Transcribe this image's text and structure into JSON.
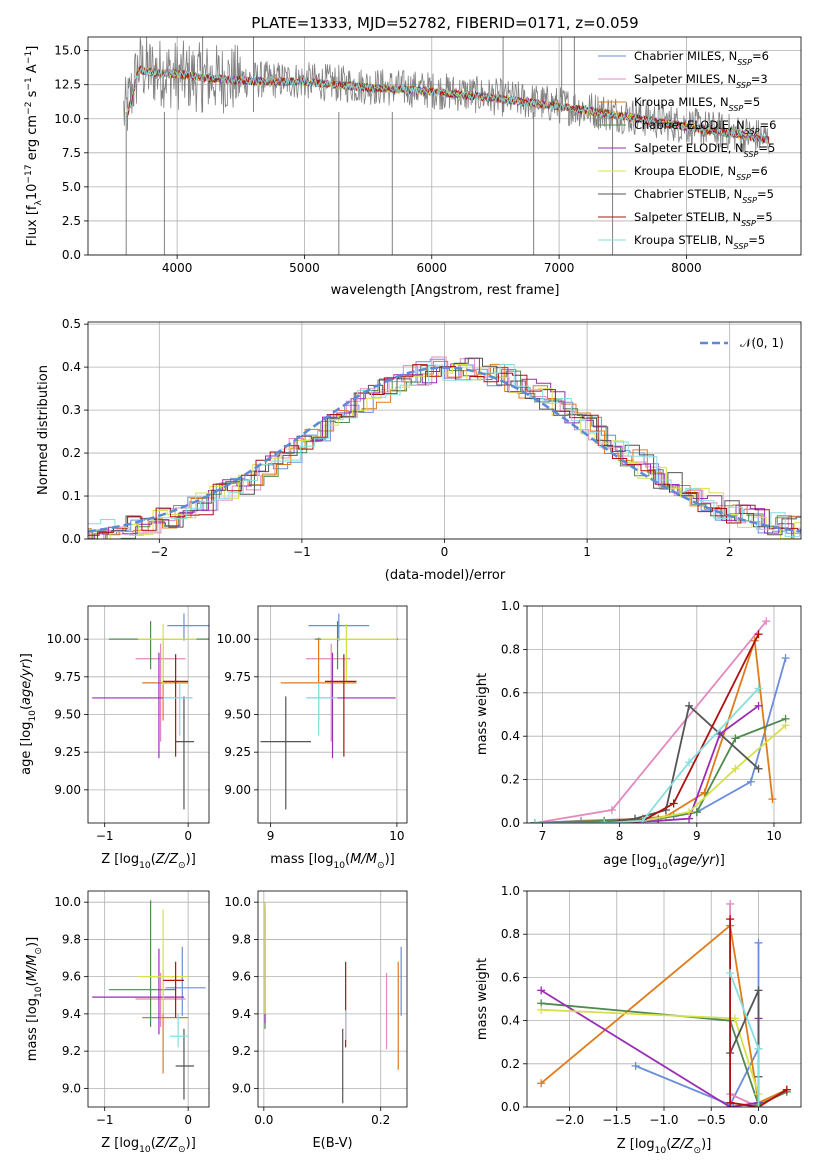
{
  "colors": [
    "#6b8ddb",
    "#e388c0",
    "#e07b1a",
    "#4f8a4f",
    "#9a2db5",
    "#d6e04a",
    "#555555",
    "#b01010",
    "#86dede"
  ],
  "chart_data": [
    {
      "id": "spectrum",
      "type": "line",
      "title": "PLATE=1333, MJD=52782, FIBERID=0171, z=0.059",
      "xlabel": "wavelength [Angstrom, rest frame]",
      "ylabel": "Flux [f_λ 10^-17 erg cm^-2 s^-1 A^-1]",
      "xlim": [
        3300,
        8900
      ],
      "ylim": [
        0,
        16
      ],
      "xticks": [
        4000,
        5000,
        6000,
        7000,
        8000
      ],
      "yticks": [
        0.0,
        2.5,
        5.0,
        7.5,
        10.0,
        12.5,
        15.0
      ],
      "ytick_labels": [
        "0.0",
        "2.5",
        "5.0",
        "7.5",
        "10.0",
        "12.5",
        "15.0"
      ],
      "legend_position": "top-right",
      "legend": [
        {
          "name": "Chabrier MILES",
          "n_ssp": "6"
        },
        {
          "name": "Salpeter MILES",
          "n_ssp": "3"
        },
        {
          "name": "Kroupa MILES",
          "n_ssp": "5"
        },
        {
          "name": "Chabrier ELODIE",
          "n_ssp": "6"
        },
        {
          "name": "Salpeter ELODIE",
          "n_ssp": "5"
        },
        {
          "name": "Kroupa ELODIE",
          "n_ssp": "6"
        },
        {
          "name": "Chabrier STELIB",
          "n_ssp": "5"
        },
        {
          "name": "Salpeter STELIB",
          "n_ssp": "5"
        },
        {
          "name": "Kroupa STELIB",
          "n_ssp": "5"
        }
      ],
      "data_color": "#808080",
      "data_trend": {
        "x": [
          3600,
          3700,
          3800,
          4000,
          4200,
          4500,
          5000,
          5500,
          6000,
          6500,
          7000,
          7500,
          8000,
          8500,
          8650
        ],
        "y": [
          10.5,
          13.8,
          13.5,
          13.2,
          13.0,
          12.9,
          12.8,
          12.4,
          12.1,
          11.6,
          11.0,
          10.3,
          9.5,
          8.8,
          8.5
        ]
      },
      "model_trend": {
        "x": [
          3600,
          3700,
          3800,
          4000,
          4200,
          4500,
          5000,
          5500,
          6000,
          6500,
          7000,
          7500,
          8000,
          8500,
          8650
        ],
        "y": [
          10.0,
          13.6,
          13.4,
          13.3,
          13.0,
          12.8,
          12.7,
          12.3,
          12.0,
          11.5,
          10.9,
          10.2,
          9.4,
          8.7,
          8.4
        ]
      }
    },
    {
      "id": "residuals",
      "type": "line",
      "xlabel": "(data-model)/error",
      "ylabel": "Normed distribution",
      "xlim": [
        -2.5,
        2.5
      ],
      "ylim": [
        0,
        0.505
      ],
      "xticks": [
        -2,
        -1,
        0,
        1,
        2
      ],
      "xtick_labels": [
        "−2",
        "−1",
        "0",
        "1",
        "2"
      ],
      "yticks": [
        0.0,
        0.1,
        0.2,
        0.3,
        0.4,
        0.5
      ],
      "ytick_labels": [
        "0.0",
        "0.1",
        "0.2",
        "0.3",
        "0.4",
        "0.5"
      ],
      "legend_label": "𝒩(0, 1)",
      "legend_position": "top-right",
      "normal_color": "#5b8ad6"
    },
    {
      "id": "age-vs-Z",
      "type": "errorbar",
      "xlabel": "Z [log10(Z/Z⊙)]",
      "ylabel": "age [log10(age/yr)]",
      "xlim": [
        -1.2,
        0.25
      ],
      "ylim": [
        8.78,
        10.22
      ],
      "xticks": [
        -1,
        0
      ],
      "xtick_labels": [
        "−1",
        "0"
      ],
      "yticks": [
        9.0,
        9.25,
        9.5,
        9.75,
        10.0
      ],
      "ytick_labels": [
        "9.00",
        "9.25",
        "9.50",
        "9.75",
        "10.00"
      ],
      "points": [
        {
          "x": -0.05,
          "xerr": [
            0.2,
            0.3
          ],
          "y": 10.09,
          "yerr": [
            0.1,
            0.08
          ]
        },
        {
          "x": -0.33,
          "xerr": [
            0.3,
            0.3
          ],
          "y": 9.87,
          "yerr": [
            0.55,
            0.1
          ]
        },
        {
          "x": -0.3,
          "xerr": [
            0.25,
            0.3
          ],
          "y": 9.71,
          "yerr": [
            0.25,
            0.3
          ]
        },
        {
          "x": -0.45,
          "xerr": [
            0.5,
            0.7
          ],
          "y": 10.0,
          "yerr": [
            0.2,
            0.12
          ]
        },
        {
          "x": -0.35,
          "xerr": [
            0.8,
            0.4
          ],
          "y": 9.61,
          "yerr": [
            0.4,
            0.3
          ]
        },
        {
          "x": -0.3,
          "xerr": [
            0.3,
            0.4
          ],
          "y": 10.0,
          "yerr": [
            0.3,
            0.1
          ]
        },
        {
          "x": -0.05,
          "xerr": [
            0.1,
            0.12
          ],
          "y": 9.32,
          "yerr": [
            0.45,
            0.3
          ]
        },
        {
          "x": -0.15,
          "xerr": [
            0.15,
            0.15
          ],
          "y": 9.72,
          "yerr": [
            0.5,
            0.18
          ]
        },
        {
          "x": -0.1,
          "xerr": [
            0.2,
            0.15
          ],
          "y": 9.61,
          "yerr": [
            0.25,
            0.1
          ]
        }
      ]
    },
    {
      "id": "age-vs-mass",
      "type": "errorbar",
      "xlabel": "mass [log10(M/M⊙)]",
      "xlim": [
        8.9,
        10.08
      ],
      "ylim": [
        8.78,
        10.22
      ],
      "xticks": [
        9,
        10
      ],
      "xtick_labels": [
        "9",
        "10"
      ],
      "yticks": [
        9.0,
        9.25,
        9.5,
        9.75,
        10.0
      ],
      "ytick_labels": [
        "9.00",
        "9.25",
        "9.50",
        "9.75",
        "10.00"
      ],
      "points": [
        {
          "x": 9.54,
          "xerr": [
            0.24,
            0.24
          ],
          "y": 10.09,
          "yerr": [
            0.1,
            0.08
          ]
        },
        {
          "x": 9.48,
          "xerr": [
            0.2,
            0.15
          ],
          "y": 9.87,
          "yerr": [
            0.55,
            0.1
          ]
        },
        {
          "x": 9.38,
          "xerr": [
            0.3,
            0.3
          ],
          "y": 9.71,
          "yerr": [
            0.25,
            0.3
          ]
        },
        {
          "x": 9.53,
          "xerr": [
            0.18,
            0.48
          ],
          "y": 10.0,
          "yerr": [
            0.2,
            0.12
          ]
        },
        {
          "x": 9.49,
          "xerr": [
            0.2,
            0.5
          ],
          "y": 9.61,
          "yerr": [
            0.4,
            0.3
          ]
        },
        {
          "x": 9.6,
          "xerr": [
            0.2,
            0.4
          ],
          "y": 10.0,
          "yerr": [
            0.3,
            0.1
          ]
        },
        {
          "x": 9.12,
          "xerr": [
            0.2,
            0.2
          ],
          "y": 9.32,
          "yerr": [
            0.45,
            0.3
          ]
        },
        {
          "x": 9.58,
          "xerr": [
            0.15,
            0.1
          ],
          "y": 9.72,
          "yerr": [
            0.5,
            0.18
          ]
        },
        {
          "x": 9.38,
          "xerr": [
            0.1,
            0.15
          ],
          "y": 9.61,
          "yerr": [
            0.25,
            0.1
          ]
        }
      ]
    },
    {
      "id": "massweight-vs-age",
      "type": "line",
      "xlabel": "age [log10(age/yr)]",
      "ylabel": "mass weight",
      "xlim": [
        6.8,
        10.35
      ],
      "ylim": [
        0,
        1.0
      ],
      "xticks": [
        7,
        8,
        9,
        10
      ],
      "xtick_labels": [
        "7",
        "8",
        "9",
        "10"
      ],
      "yticks": [
        0.0,
        0.2,
        0.4,
        0.6,
        0.8,
        1.0
      ],
      "ytick_labels": [
        "0.0",
        "0.2",
        "0.4",
        "0.6",
        "0.8",
        "1.0"
      ],
      "series": [
        {
          "x": [
            6.9,
            7.5,
            8.3,
            8.7,
            9.0,
            9.7,
            10.15
          ],
          "y": [
            0.0,
            0.01,
            0.02,
            0.03,
            0.05,
            0.19,
            0.76
          ]
        },
        {
          "x": [
            6.9,
            7.9,
            9.9
          ],
          "y": [
            0.0,
            0.06,
            0.93
          ]
        },
        {
          "x": [
            6.9,
            8.3,
            8.6,
            9.1,
            9.75,
            9.98
          ],
          "y": [
            0.0,
            0.02,
            0.03,
            0.14,
            0.84,
            0.11
          ]
        },
        {
          "x": [
            6.9,
            7.8,
            8.5,
            9.0,
            9.5,
            10.15
          ],
          "y": [
            0.0,
            0.01,
            0.02,
            0.05,
            0.39,
            0.48
          ]
        },
        {
          "x": [
            6.9,
            7.8,
            8.5,
            8.9,
            9.3,
            9.8
          ],
          "y": [
            0.0,
            0.0,
            0.01,
            0.02,
            0.41,
            0.54
          ]
        },
        {
          "x": [
            6.9,
            7.8,
            8.3,
            8.9,
            9.5,
            10.15
          ],
          "y": [
            0.0,
            0.0,
            0.01,
            0.05,
            0.25,
            0.45
          ]
        },
        {
          "x": [
            6.9,
            7.8,
            8.2,
            8.6,
            8.9,
            9.8
          ],
          "y": [
            0.0,
            0.0,
            0.02,
            0.06,
            0.54,
            0.25
          ]
        },
        {
          "x": [
            6.9,
            8.0,
            8.3,
            8.7,
            9.8
          ],
          "y": [
            0.0,
            0.0,
            0.01,
            0.09,
            0.87
          ]
        },
        {
          "x": [
            6.9,
            7.8,
            8.3,
            8.9,
            9.8
          ],
          "y": [
            0.0,
            0.0,
            0.01,
            0.28,
            0.62
          ]
        }
      ]
    },
    {
      "id": "mass-vs-Z",
      "type": "errorbar",
      "xlabel": "Z [log10(Z/Z⊙)]",
      "ylabel": "mass [log10(M/M⊙)]",
      "xlim": [
        -1.2,
        0.25
      ],
      "ylim": [
        8.9,
        10.06
      ],
      "xticks": [
        -1,
        0
      ],
      "xtick_labels": [
        "−1",
        "0"
      ],
      "yticks": [
        9.0,
        9.2,
        9.4,
        9.6,
        9.8,
        10.0
      ],
      "ytick_labels": [
        "9.0",
        "9.2",
        "9.4",
        "9.6",
        "9.8",
        "10.0"
      ],
      "points": [
        {
          "x": -0.07,
          "xerr": [
            0.2,
            0.28
          ],
          "y": 9.54,
          "yerr": [
            0.15,
            0.22
          ]
        },
        {
          "x": -0.33,
          "xerr": [
            0.3,
            0.3
          ],
          "y": 9.48,
          "yerr": [
            0.15,
            0.14
          ]
        },
        {
          "x": -0.3,
          "xerr": [
            0.25,
            0.3
          ],
          "y": 9.38,
          "yerr": [
            0.3,
            0.26
          ]
        },
        {
          "x": -0.45,
          "xerr": [
            0.5,
            0.3
          ],
          "y": 9.53,
          "yerr": [
            0.2,
            0.48
          ]
        },
        {
          "x": -0.35,
          "xerr": [
            0.8,
            0.3
          ],
          "y": 9.49,
          "yerr": [
            0.2,
            0.26
          ]
        },
        {
          "x": -0.3,
          "xerr": [
            0.3,
            0.3
          ],
          "y": 9.6,
          "yerr": [
            0.2,
            0.36
          ]
        },
        {
          "x": -0.05,
          "xerr": [
            0.1,
            0.12
          ],
          "y": 9.12,
          "yerr": [
            0.18,
            0.2
          ]
        },
        {
          "x": -0.15,
          "xerr": [
            0.15,
            0.1
          ],
          "y": 9.58,
          "yerr": [
            0.2,
            0.1
          ]
        },
        {
          "x": -0.12,
          "xerr": [
            0.1,
            0.12
          ],
          "y": 9.28,
          "yerr": [
            0.06,
            0.12
          ]
        }
      ]
    },
    {
      "id": "mass-vs-EBV",
      "type": "errorbar",
      "xlabel": "E(B-V)",
      "xlim": [
        -0.01,
        0.245
      ],
      "ylim": [
        8.9,
        10.06
      ],
      "xticks": [
        0.0,
        0.2
      ],
      "xtick_labels": [
        "0.0",
        "0.2"
      ],
      "yticks": [
        9.0,
        9.2,
        9.4,
        9.6,
        9.8,
        10.0
      ],
      "ytick_labels": [
        "9.0",
        "9.2",
        "9.4",
        "9.6",
        "9.8",
        "10.0"
      ],
      "points": [
        {
          "x": 0.235,
          "y": 9.54,
          "yerr": [
            0.15,
            0.22
          ]
        },
        {
          "x": 0.21,
          "y": 9.46,
          "yerr": [
            0.25,
            0.16
          ]
        },
        {
          "x": 0.23,
          "y": 9.4,
          "yerr": [
            0.3,
            0.28
          ]
        },
        {
          "x": 0.002,
          "y": 9.62,
          "yerr": [
            0.3,
            0.35
          ]
        },
        {
          "x": 0.002,
          "y": 9.65,
          "yerr": [
            0.3,
            0.35
          ]
        },
        {
          "x": 0.002,
          "y": 9.7,
          "yerr": [
            0.3,
            0.3
          ]
        },
        {
          "x": 0.135,
          "y": 9.12,
          "yerr": [
            0.2,
            0.2
          ]
        },
        {
          "x": 0.14,
          "y": 9.42,
          "yerr": [
            0.2,
            0.26
          ]
        },
        {
          "x": 0.14,
          "y": 9.32,
          "yerr": [
            0.06,
            0.1
          ]
        }
      ]
    },
    {
      "id": "massweight-vs-Z",
      "type": "line",
      "xlabel": "Z [log10(Z/Z⊙)]",
      "ylabel": "mass weight",
      "xlim": [
        -2.45,
        0.45
      ],
      "ylim": [
        0,
        1.0
      ],
      "xticks": [
        -2.0,
        -1.5,
        -1.0,
        -0.5,
        0.0
      ],
      "xtick_labels": [
        "−2.0",
        "−1.5",
        "−1.0",
        "−0.5",
        "0.0"
      ],
      "yticks": [
        0.0,
        0.2,
        0.4,
        0.6,
        0.8,
        1.0
      ],
      "ytick_labels": [
        "0.0",
        "0.2",
        "0.4",
        "0.6",
        "0.8",
        "1.0"
      ],
      "series": [
        {
          "x": [
            -1.3,
            -0.3,
            0.0,
            0.0
          ],
          "y": [
            0.19,
            0.01,
            0.27,
            0.76
          ]
        },
        {
          "x": [
            -0.3,
            -0.3,
            0.0
          ],
          "y": [
            0.94,
            0.06,
            0.0
          ]
        },
        {
          "x": [
            -2.3,
            -0.3,
            0.0,
            0.3
          ],
          "y": [
            0.11,
            0.84,
            0.02,
            0.08
          ]
        },
        {
          "x": [
            -2.3,
            -0.3,
            0.0,
            0.3
          ],
          "y": [
            0.48,
            0.4,
            0.01,
            0.07
          ]
        },
        {
          "x": [
            -2.3,
            -0.3,
            0.0,
            0.0
          ],
          "y": [
            0.54,
            0.0,
            0.02,
            0.41
          ]
        },
        {
          "x": [
            -2.3,
            -0.25,
            0.0,
            0.0
          ],
          "y": [
            0.45,
            0.41,
            0.06,
            0.0
          ]
        },
        {
          "x": [
            -0.3,
            0.0,
            0.0,
            0.0
          ],
          "y": [
            0.25,
            0.54,
            0.14,
            0.0
          ]
        },
        {
          "x": [
            -0.3,
            -0.3,
            0.0,
            0.3
          ],
          "y": [
            0.87,
            0.02,
            0.0,
            0.08
          ]
        },
        {
          "x": [
            -0.3,
            0.0,
            0.0
          ],
          "y": [
            0.62,
            0.27,
            0.0
          ]
        }
      ]
    }
  ]
}
